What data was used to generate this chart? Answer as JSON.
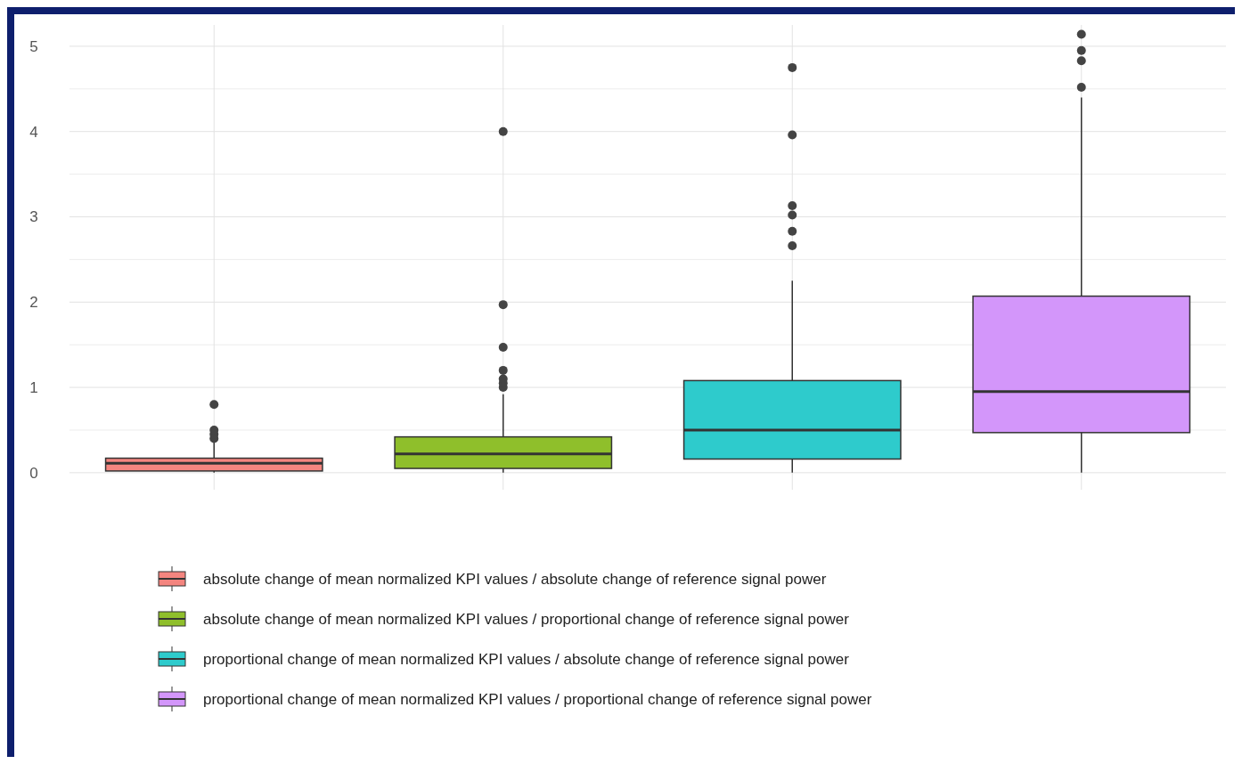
{
  "chart_data": {
    "type": "box",
    "categories": [
      null,
      null,
      null,
      null
    ],
    "ylim": [
      -0.2,
      5.25
    ],
    "yticks": [
      0,
      1,
      2,
      3,
      4,
      5
    ],
    "grid": true,
    "legend": "bottom",
    "tick_labels": "y",
    "series": [
      {
        "name": "absolute change of mean normalized KPI values / absolute change of reference signal power",
        "color": "#f4857f",
        "boxes": [
          {
            "low": 0,
            "q1": 0.02,
            "median": 0.11,
            "q3": 0.17,
            "high": 0.37,
            "outliers": [
              0.4,
              0.45,
              0.5,
              0.8
            ]
          },
          null,
          null,
          null
        ]
      },
      {
        "name": "absolute change of mean normalized KPI values / proportional change of reference signal power",
        "color": "#8fbf2b",
        "boxes": [
          null,
          {
            "low": 0,
            "q1": 0.05,
            "median": 0.22,
            "q3": 0.42,
            "high": 0.92,
            "outliers": [
              1.0,
              1.05,
              1.1,
              1.2,
              1.47,
              1.97,
              4.0
            ]
          },
          null,
          null
        ]
      },
      {
        "name": "proportional change of mean normalized KPI values / absolute change of reference signal power",
        "color": "#2ecbcc",
        "boxes": [
          null,
          null,
          {
            "low": 0,
            "q1": 0.16,
            "median": 0.5,
            "q3": 1.08,
            "high": 2.25,
            "outliers": [
              2.66,
              2.83,
              3.02,
              3.13,
              3.96,
              4.75
            ]
          },
          null
        ]
      },
      {
        "name": "proportional change of mean normalized KPI values / proportional change of reference signal power",
        "color": "#d396fa",
        "boxes": [
          null,
          null,
          null,
          {
            "low": 0,
            "q1": 0.47,
            "median": 0.95,
            "q3": 2.07,
            "high": 4.4,
            "outliers": [
              4.52,
              4.83,
              4.95,
              5.14
            ]
          }
        ]
      }
    ]
  }
}
